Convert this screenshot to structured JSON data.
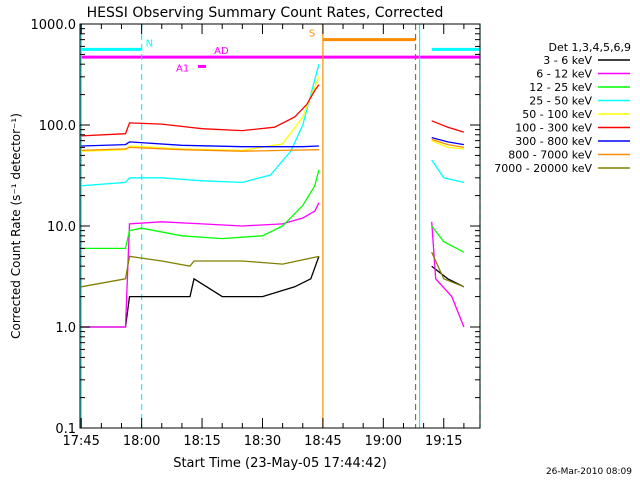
{
  "chart_data": {
    "type": "line",
    "title": "HESSI Observing Summary Count Rates, Corrected",
    "xlabel": "Start Time (23-May-05 17:44:42)",
    "ylabel": "Corrected Count Rate (s⁻¹ detector⁻¹)",
    "footer": "26-Mar-2010 08:09",
    "y_scale": "log",
    "ylim": [
      0.1,
      1000
    ],
    "y_ticks": [
      {
        "value": 0.1,
        "label": "0.1"
      },
      {
        "value": 1,
        "label": "1.0"
      },
      {
        "value": 10,
        "label": "10.0"
      },
      {
        "value": 100,
        "label": "100.0"
      },
      {
        "value": 1000,
        "label": "1000.0"
      }
    ],
    "xlim": [
      "17:44:42",
      "19:24:00"
    ],
    "x_ticks": [
      "17:45",
      "18:00",
      "18:15",
      "18:30",
      "18:45",
      "19:00",
      "19:15"
    ],
    "legend_title": "Det 1,3,4,5,6,9",
    "legend_position": "right",
    "data_gaps": [
      [
        "18:45:00",
        "19:12:00"
      ]
    ],
    "series": [
      {
        "name": "3 - 6 keV",
        "color": "#000000",
        "points": [
          [
            "17:45",
            1.0
          ],
          [
            "17:56",
            1.0
          ],
          [
            "17:57",
            2.0
          ],
          [
            "18:05",
            2.0
          ],
          [
            "18:12",
            2.0
          ],
          [
            "18:13",
            3.0
          ],
          [
            "18:20",
            2.0
          ],
          [
            "18:30",
            2.0
          ],
          [
            "18:38",
            2.5
          ],
          [
            "18:42",
            3.0
          ],
          [
            "18:44",
            5.0
          ],
          [
            "19:12",
            4.0
          ],
          [
            "19:16",
            3.0
          ],
          [
            "19:20",
            2.5
          ]
        ]
      },
      {
        "name": "6 - 12 keV",
        "color": "#ff00ff",
        "points": [
          [
            "17:45",
            1.0
          ],
          [
            "17:56",
            1.0
          ],
          [
            "17:57",
            10.5
          ],
          [
            "18:05",
            11.0
          ],
          [
            "18:15",
            10.5
          ],
          [
            "18:25",
            10.0
          ],
          [
            "18:35",
            10.5
          ],
          [
            "18:40",
            12.0
          ],
          [
            "18:43",
            14.0
          ],
          [
            "18:44",
            17.0
          ],
          [
            "19:12",
            11.0
          ],
          [
            "19:13",
            3.0
          ],
          [
            "19:17",
            2.0
          ],
          [
            "19:20",
            1.0
          ]
        ]
      },
      {
        "name": "12 - 25 keV",
        "color": "#00ff00",
        "points": [
          [
            "17:45",
            6.0
          ],
          [
            "17:56",
            6.0
          ],
          [
            "17:57",
            9.0
          ],
          [
            "18:00",
            9.5
          ],
          [
            "18:10",
            8.0
          ],
          [
            "18:20",
            7.5
          ],
          [
            "18:30",
            8.0
          ],
          [
            "18:35",
            10.0
          ],
          [
            "18:40",
            16.0
          ],
          [
            "18:43",
            25.0
          ],
          [
            "18:44",
            36.0
          ],
          [
            "19:12",
            10.0
          ],
          [
            "19:15",
            7.0
          ],
          [
            "19:20",
            5.5
          ]
        ]
      },
      {
        "name": "25 - 50 keV",
        "color": "#00ffff",
        "points": [
          [
            "17:45",
            25.0
          ],
          [
            "17:56",
            27.0
          ],
          [
            "17:57",
            30.0
          ],
          [
            "18:05",
            30.0
          ],
          [
            "18:15",
            28.0
          ],
          [
            "18:25",
            27.0
          ],
          [
            "18:32",
            32.0
          ],
          [
            "18:37",
            55.0
          ],
          [
            "18:40",
            100.0
          ],
          [
            "18:42",
            200.0
          ],
          [
            "18:44",
            400.0
          ],
          [
            "19:12",
            45.0
          ],
          [
            "19:15",
            30.0
          ],
          [
            "19:20",
            27.0
          ]
        ]
      },
      {
        "name": "50 - 100 keV",
        "color": "#ffff00",
        "points": [
          [
            "17:45",
            55.0
          ],
          [
            "17:56",
            57.0
          ],
          [
            "17:57",
            62.0
          ],
          [
            "18:10",
            58.0
          ],
          [
            "18:25",
            56.0
          ],
          [
            "18:35",
            65.0
          ],
          [
            "18:40",
            120.0
          ],
          [
            "18:42",
            190.0
          ],
          [
            "18:44",
            300.0
          ],
          [
            "19:12",
            70.0
          ],
          [
            "19:16",
            60.0
          ],
          [
            "19:20",
            58.0
          ]
        ]
      },
      {
        "name": "100 - 300 keV",
        "color": "#ff0000",
        "points": [
          [
            "17:45",
            78.0
          ],
          [
            "17:56",
            82.0
          ],
          [
            "17:57",
            105.0
          ],
          [
            "18:05",
            102.0
          ],
          [
            "18:15",
            92.0
          ],
          [
            "18:25",
            88.0
          ],
          [
            "18:33",
            95.0
          ],
          [
            "18:38",
            120.0
          ],
          [
            "18:41",
            160.0
          ],
          [
            "18:43",
            220.0
          ],
          [
            "18:44",
            250.0
          ],
          [
            "19:12",
            110.0
          ],
          [
            "19:16",
            95.0
          ],
          [
            "19:20",
            85.0
          ]
        ]
      },
      {
        "name": "300 - 800 keV",
        "color": "#0000ff",
        "points": [
          [
            "17:45",
            62.0
          ],
          [
            "17:56",
            64.0
          ],
          [
            "17:57",
            68.0
          ],
          [
            "18:10",
            63.0
          ],
          [
            "18:25",
            61.0
          ],
          [
            "18:40",
            61.0
          ],
          [
            "18:44",
            62.0
          ],
          [
            "19:12",
            75.0
          ],
          [
            "19:16",
            68.0
          ],
          [
            "19:20",
            64.0
          ]
        ]
      },
      {
        "name": "800 - 7000 keV",
        "color": "#ff8c00",
        "points": [
          [
            "17:45",
            56.0
          ],
          [
            "17:56",
            58.0
          ],
          [
            "17:57",
            60.0
          ],
          [
            "18:10",
            57.0
          ],
          [
            "18:25",
            55.0
          ],
          [
            "18:35",
            56.0
          ],
          [
            "18:44",
            57.0
          ],
          [
            "19:12",
            72.0
          ],
          [
            "19:16",
            64.0
          ],
          [
            "19:20",
            60.0
          ]
        ]
      },
      {
        "name": "7000 - 20000 keV",
        "color": "#808000",
        "points": [
          [
            "17:45",
            2.5
          ],
          [
            "17:56",
            3.0
          ],
          [
            "17:57",
            5.0
          ],
          [
            "18:05",
            4.5
          ],
          [
            "18:12",
            4.0
          ],
          [
            "18:13",
            4.5
          ],
          [
            "18:25",
            4.5
          ],
          [
            "18:35",
            4.2
          ],
          [
            "18:44",
            5.0
          ],
          [
            "19:12",
            5.5
          ],
          [
            "19:15",
            3.0
          ],
          [
            "19:20",
            2.5
          ]
        ]
      }
    ],
    "flag_bars": [
      {
        "label": "N",
        "color": "#00ffff",
        "level": 560,
        "segments": [
          [
            "17:45",
            "18:00"
          ],
          [
            "19:12",
            "19:24"
          ]
        ]
      },
      {
        "label": "AD",
        "color": "#ff00ff",
        "level": 470,
        "segments": [
          [
            "17:45",
            "19:24"
          ]
        ]
      },
      {
        "label": "A1",
        "color": "#ff00ff",
        "level": 380,
        "segments": [
          [
            "18:14",
            "18:16"
          ]
        ]
      },
      {
        "label": "S",
        "color": "#ff8c00",
        "level": 700,
        "segments": [
          [
            "18:45",
            "19:08"
          ]
        ]
      }
    ],
    "vertical_markers": [
      {
        "time": "17:45",
        "color": "#00ffff",
        "style": "solid"
      },
      {
        "time": "18:00",
        "color": "#00ffff",
        "style": "dashed"
      },
      {
        "time": "18:45",
        "color": "#ff8c00",
        "style": "solid"
      },
      {
        "time": "19:08",
        "color": "#808000",
        "style": "dashed"
      },
      {
        "time": "19:09",
        "color": "#00ffff",
        "style": "solid"
      },
      {
        "time": "19:24",
        "color": "#00ffff",
        "style": "dashed"
      }
    ]
  }
}
